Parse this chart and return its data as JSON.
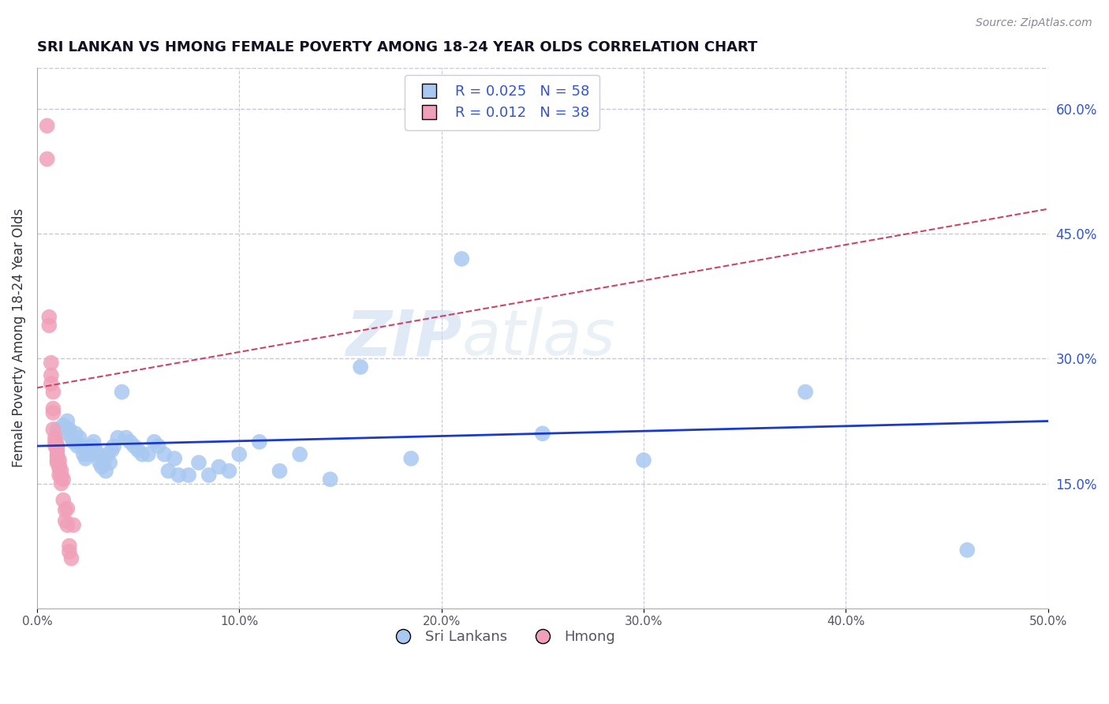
{
  "title": "SRI LANKAN VS HMONG FEMALE POVERTY AMONG 18-24 YEAR OLDS CORRELATION CHART",
  "source": "Source: ZipAtlas.com",
  "ylabel": "Female Poverty Among 18-24 Year Olds",
  "xlim": [
    0.0,
    0.5
  ],
  "ylim": [
    0.0,
    0.65
  ],
  "xticks": [
    0.0,
    0.1,
    0.2,
    0.3,
    0.4,
    0.5
  ],
  "xtick_labels": [
    "0.0%",
    "10.0%",
    "20.0%",
    "30.0%",
    "40.0%",
    "50.0%"
  ],
  "yticks_right": [
    0.15,
    0.3,
    0.45,
    0.6
  ],
  "ytick_labels_right": [
    "15.0%",
    "30.0%",
    "45.0%",
    "60.0%"
  ],
  "grid_color": "#c8c8d8",
  "background_color": "#ffffff",
  "sri_lankan_color": "#a8c8f0",
  "hmong_color": "#f0a0b8",
  "sri_lankan_line_color": "#1a3acc",
  "hmong_line_color": "#cc4466",
  "legend_sri_label": "Sri Lankans",
  "legend_hmong_label": "Hmong",
  "R_sri": "0.025",
  "N_sri": "58",
  "R_hmong": "0.012",
  "N_hmong": "38",
  "watermark_zip": "ZIP",
  "watermark_atlas": "atlas",
  "sri_lankan_x": [
    0.01,
    0.012,
    0.013,
    0.015,
    0.016,
    0.017,
    0.018,
    0.019,
    0.02,
    0.021,
    0.022,
    0.023,
    0.024,
    0.025,
    0.026,
    0.027,
    0.028,
    0.029,
    0.03,
    0.031,
    0.032,
    0.033,
    0.034,
    0.035,
    0.036,
    0.037,
    0.038,
    0.04,
    0.042,
    0.044,
    0.046,
    0.048,
    0.05,
    0.052,
    0.055,
    0.058,
    0.06,
    0.063,
    0.065,
    0.068,
    0.07,
    0.075,
    0.08,
    0.085,
    0.09,
    0.095,
    0.1,
    0.11,
    0.12,
    0.13,
    0.145,
    0.16,
    0.185,
    0.21,
    0.25,
    0.3,
    0.38,
    0.46
  ],
  "sri_lankan_y": [
    0.215,
    0.21,
    0.22,
    0.225,
    0.215,
    0.205,
    0.2,
    0.21,
    0.195,
    0.205,
    0.195,
    0.185,
    0.18,
    0.19,
    0.185,
    0.195,
    0.2,
    0.19,
    0.185,
    0.175,
    0.17,
    0.175,
    0.165,
    0.185,
    0.175,
    0.19,
    0.195,
    0.205,
    0.26,
    0.205,
    0.2,
    0.195,
    0.19,
    0.185,
    0.185,
    0.2,
    0.195,
    0.185,
    0.165,
    0.18,
    0.16,
    0.16,
    0.175,
    0.16,
    0.17,
    0.165,
    0.185,
    0.2,
    0.165,
    0.185,
    0.155,
    0.29,
    0.18,
    0.42,
    0.21,
    0.178,
    0.26,
    0.07
  ],
  "hmong_x": [
    0.005,
    0.005,
    0.006,
    0.006,
    0.007,
    0.007,
    0.007,
    0.008,
    0.008,
    0.008,
    0.008,
    0.009,
    0.009,
    0.009,
    0.01,
    0.01,
    0.01,
    0.01,
    0.01,
    0.01,
    0.01,
    0.011,
    0.011,
    0.011,
    0.011,
    0.012,
    0.012,
    0.012,
    0.013,
    0.013,
    0.014,
    0.014,
    0.015,
    0.015,
    0.016,
    0.016,
    0.017,
    0.018
  ],
  "hmong_y": [
    0.58,
    0.54,
    0.35,
    0.34,
    0.295,
    0.28,
    0.27,
    0.26,
    0.24,
    0.235,
    0.215,
    0.205,
    0.2,
    0.195,
    0.195,
    0.195,
    0.19,
    0.185,
    0.182,
    0.178,
    0.175,
    0.178,
    0.172,
    0.168,
    0.16,
    0.165,
    0.158,
    0.15,
    0.155,
    0.13,
    0.118,
    0.105,
    0.12,
    0.1,
    0.075,
    0.068,
    0.06,
    0.1
  ],
  "sri_trend_x": [
    0.0,
    0.5
  ],
  "sri_trend_y": [
    0.195,
    0.225
  ],
  "hmong_trend_x": [
    0.0,
    0.5
  ],
  "hmong_trend_y": [
    0.265,
    0.48
  ]
}
